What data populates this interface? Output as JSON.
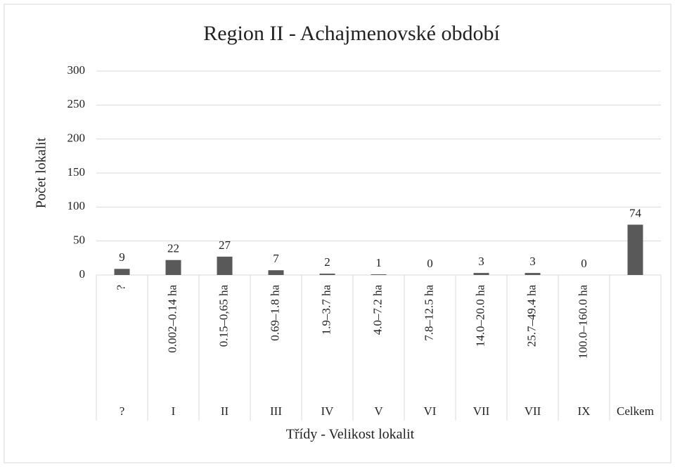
{
  "chart_data": {
    "type": "bar",
    "title": "Region II - Achajmenovské období",
    "x_label": "Třídy - Velikost lokalit",
    "y_label": "Počet lokalit",
    "categories": [
      "?",
      "I",
      "II",
      "III",
      "IV",
      "V",
      "VI",
      "VII",
      "VII",
      "IX",
      "Celkem"
    ],
    "subcategories": [
      "?",
      "0.002–0.14 ha",
      "0.15–0,65 ha",
      "0.69–1.8 ha",
      "1.9–3.7 ha",
      "4.0–7.2 ha",
      "7.8–12.5 ha",
      "14.0–20.0 ha",
      "25.7–49.4 ha",
      "100.0–160.0 ha",
      null
    ],
    "values": [
      9,
      22,
      27,
      7,
      2,
      1,
      0,
      3,
      3,
      0,
      74
    ],
    "color": "#595959",
    "ylim": [
      0,
      300
    ],
    "yticks": [
      0,
      50,
      100,
      150,
      200,
      250,
      300
    ],
    "grid": true
  }
}
